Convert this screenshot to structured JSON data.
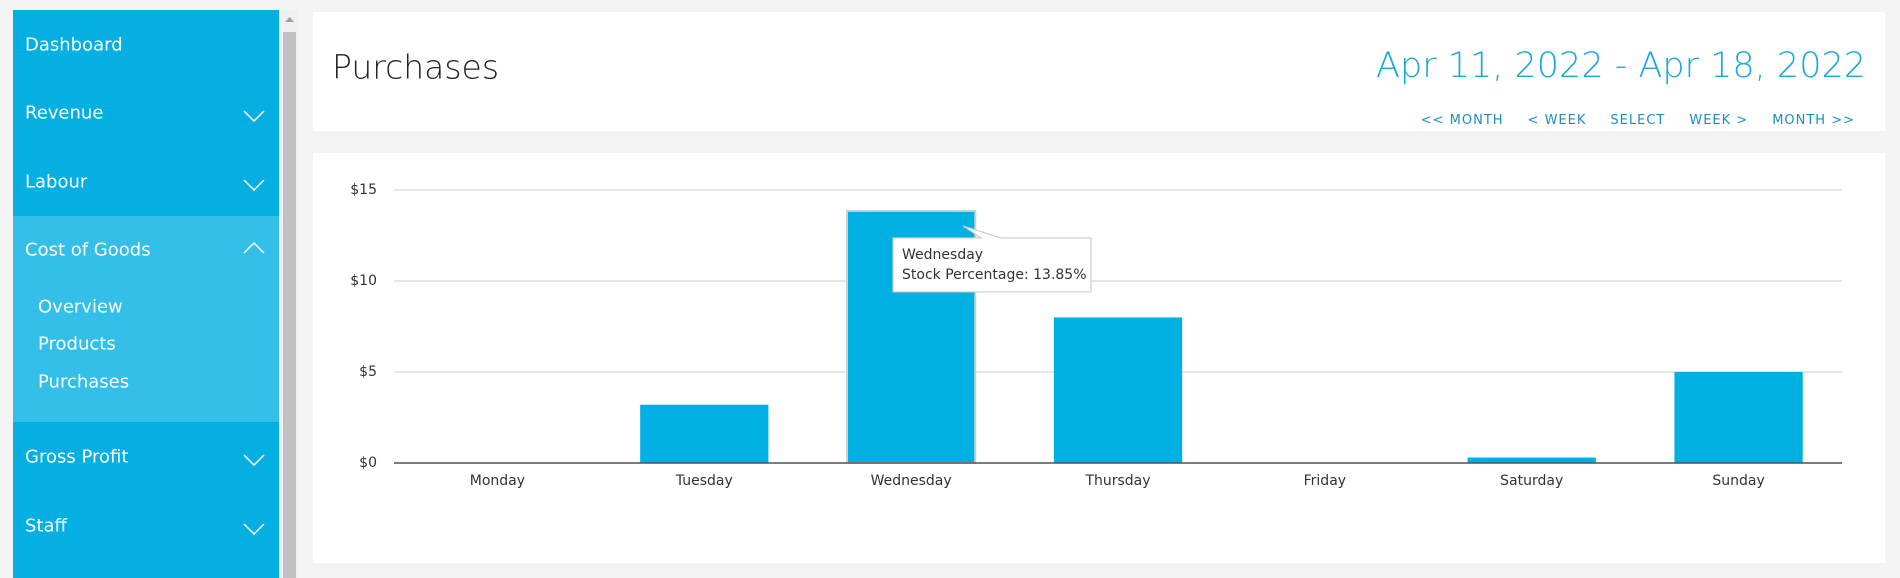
{
  "nav": {
    "items": [
      "Dashboard",
      "Revenue",
      "Labour",
      "Cost of Goods",
      "Gross Profit",
      "Staff"
    ],
    "sub_items": [
      "Overview",
      "Products",
      "Purchases"
    ]
  },
  "header": {
    "title": "Purchases",
    "date_range": "Apr 11, 2022 - Apr 18, 2022",
    "buttons": [
      "<< MONTH",
      "< WEEK",
      "SELECT",
      "WEEK >",
      "MONTH >>"
    ]
  },
  "chart_data": {
    "type": "bar",
    "categories": [
      "Monday",
      "Tuesday",
      "Wednesday",
      "Thursday",
      "Friday",
      "Saturday",
      "Sunday"
    ],
    "values": [
      0,
      3.2,
      13.85,
      8,
      0,
      0.3,
      5
    ],
    "color": "#00b0e2",
    "ylim": [
      0,
      15
    ],
    "yticks": [
      {
        "value": 0,
        "label": "$0"
      },
      {
        "value": 5,
        "label": "$5"
      },
      {
        "value": 10,
        "label": "$10"
      },
      {
        "value": 15,
        "label": "$15"
      }
    ],
    "grid": true,
    "tooltip": "Stock Percentage: 13.85%"
  }
}
